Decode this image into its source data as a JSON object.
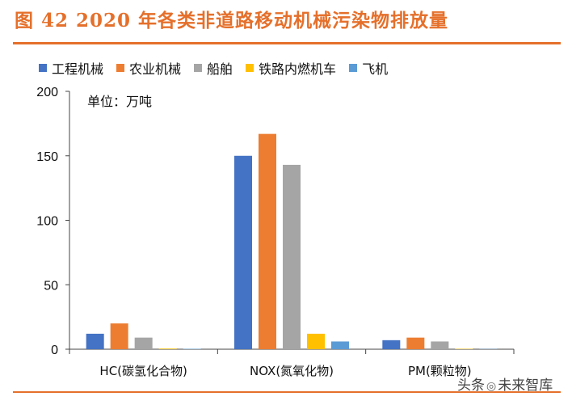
{
  "header": {
    "title": "图 42 2020 年各类非道路移动机械污染物排放量"
  },
  "watermark": {
    "text_before": "头条",
    "text_after": "未来智库",
    "icon": "wechat-icon"
  },
  "chart_data": {
    "type": "bar",
    "title": "图 42 2020 年各类非道路移动机械污染物排放量",
    "unit_label": "单位：万吨",
    "categories": [
      "HC(碳氢化合物)",
      "NOX(氮氧化物)",
      "PM(颗粒物)"
    ],
    "series": [
      {
        "name": "工程机械",
        "color": "#4472C4",
        "values": [
          12,
          150,
          7
        ]
      },
      {
        "name": "农业机械",
        "color": "#ED7D31",
        "values": [
          20,
          167,
          9
        ]
      },
      {
        "name": "船舶",
        "color": "#A5A5A5",
        "values": [
          9,
          143,
          6
        ]
      },
      {
        "name": "铁路内燃机车",
        "color": "#FFC000",
        "values": [
          0.5,
          12,
          0.3
        ]
      },
      {
        "name": "飞机",
        "color": "#5B9BD5",
        "values": [
          0.3,
          6,
          0.2
        ]
      }
    ],
    "ylim": [
      0,
      200
    ],
    "yticks": [
      0,
      50,
      100,
      150,
      200
    ],
    "xlabel": "",
    "ylabel": "",
    "legend_position": "top",
    "grid": false
  }
}
